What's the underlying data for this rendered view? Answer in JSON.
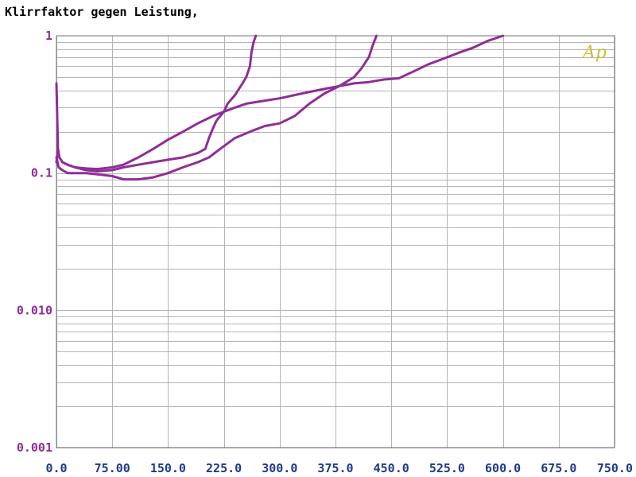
{
  "colors": {
    "series": "#8e2e96",
    "y_tick": "#8e2e96",
    "x_tick": "#1e3a8c",
    "logo": "#c8c040"
  },
  "chart_data": {
    "type": "line",
    "title": "Klirrfaktor gegen Leistung,",
    "xlabel": "",
    "ylabel": "",
    "x_scale": "linear",
    "y_scale": "log",
    "xlim": [
      0,
      750
    ],
    "ylim": [
      0.001,
      1
    ],
    "grid": true,
    "x_ticks": [
      "0.0",
      "75.00",
      "150.0",
      "225.0",
      "300.0",
      "375.0",
      "450.0",
      "525.0",
      "600.0",
      "675.0",
      "750.0"
    ],
    "y_ticks": [
      "1",
      "0.1",
      "0.010",
      "0.001"
    ],
    "logo": "Ap",
    "series": [
      {
        "x": [
          0,
          2,
          4,
          8,
          15,
          25,
          40,
          55,
          75,
          90,
          110,
          130,
          150,
          170,
          190,
          210,
          225,
          240,
          255,
          270,
          285,
          300,
          320,
          340,
          360,
          380,
          400,
          420,
          440,
          460,
          480,
          500,
          520,
          540,
          560,
          580,
          600
        ],
        "y": [
          0.12,
          0.15,
          0.13,
          0.12,
          0.115,
          0.11,
          0.108,
          0.107,
          0.11,
          0.115,
          0.13,
          0.15,
          0.175,
          0.2,
          0.23,
          0.26,
          0.28,
          0.3,
          0.32,
          0.33,
          0.34,
          0.35,
          0.37,
          0.39,
          0.41,
          0.43,
          0.45,
          0.46,
          0.48,
          0.49,
          0.55,
          0.62,
          0.68,
          0.75,
          0.82,
          0.92,
          1.0
        ]
      },
      {
        "x": [
          0,
          2,
          4,
          8,
          15,
          25,
          40,
          55,
          75,
          90,
          110,
          130,
          150,
          170,
          190,
          200,
          205,
          210,
          215,
          220,
          225,
          230,
          240,
          250,
          255,
          260,
          262,
          265,
          268
        ],
        "y": [
          0.45,
          0.15,
          0.13,
          0.12,
          0.115,
          0.11,
          0.105,
          0.103,
          0.105,
          0.11,
          0.115,
          0.12,
          0.125,
          0.13,
          0.14,
          0.15,
          0.18,
          0.21,
          0.24,
          0.26,
          0.28,
          0.32,
          0.37,
          0.45,
          0.5,
          0.6,
          0.75,
          0.9,
          1.0
        ]
      },
      {
        "x": [
          0,
          3,
          8,
          15,
          25,
          40,
          55,
          75,
          90,
          110,
          130,
          150,
          170,
          190,
          205,
          220,
          240,
          260,
          280,
          300,
          320,
          340,
          360,
          380,
          400,
          410,
          420,
          425,
          430
        ],
        "y": [
          0.13,
          0.11,
          0.105,
          0.1,
          0.1,
          0.1,
          0.098,
          0.095,
          0.09,
          0.09,
          0.093,
          0.1,
          0.11,
          0.12,
          0.13,
          0.15,
          0.18,
          0.2,
          0.22,
          0.23,
          0.26,
          0.32,
          0.38,
          0.43,
          0.5,
          0.58,
          0.7,
          0.85,
          1.0
        ]
      }
    ]
  }
}
